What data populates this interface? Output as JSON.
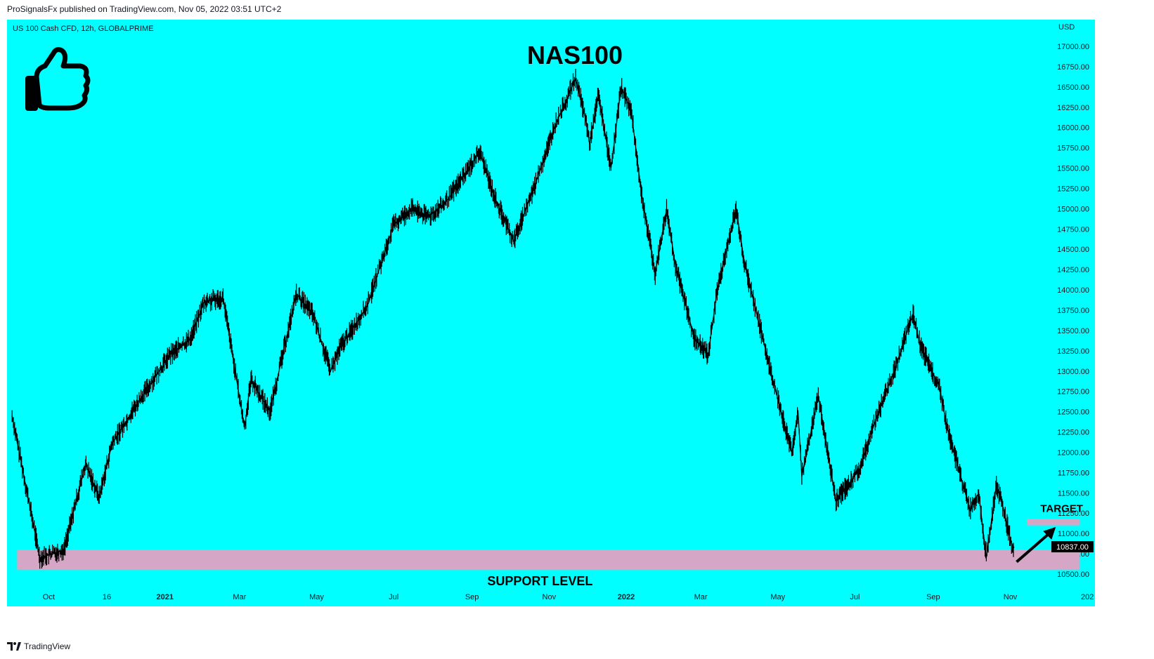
{
  "header": {
    "text": "ProSignalsFx published on TradingView.com, Nov 05, 2022 03:51 UTC+2"
  },
  "footer": {
    "text": "TradingView",
    "logo_icon": "tradingview-logo-icon"
  },
  "colors": {
    "background": "#00ffff",
    "candles": "#000000",
    "zone": "#d6a6c6",
    "price_tag": "#000000"
  },
  "chart_data": {
    "type": "line",
    "symbol": "US 100 Cash CFD, 12h, GLOBALPRIME",
    "title": "NAS100",
    "currency": "USD",
    "last_price": "10837.00",
    "ylim": [
      10400,
      17150
    ],
    "y_ticks": [
      "17000.00",
      "16750.00",
      "16500.00",
      "16250.00",
      "16000.00",
      "15750.00",
      "15500.00",
      "15250.00",
      "15000.00",
      "14750.00",
      "14500.00",
      "14250.00",
      "14000.00",
      "13750.00",
      "13500.00",
      "13250.00",
      "13000.00",
      "12750.00",
      "12500.00",
      "12250.00",
      "12000.00",
      "11750.00",
      "11500.00",
      "11250.00",
      "11000.00",
      "10750.00",
      "10500.00"
    ],
    "x_ticks": [
      {
        "label": "Oct",
        "date": "2020-10-01",
        "bold": false
      },
      {
        "label": "16",
        "date": "2020-11-16",
        "bold": false
      },
      {
        "label": "2021",
        "date": "2021-01-01",
        "bold": true
      },
      {
        "label": "Mar",
        "date": "2021-03-01",
        "bold": false
      },
      {
        "label": "May",
        "date": "2021-05-01",
        "bold": false
      },
      {
        "label": "Jul",
        "date": "2021-07-01",
        "bold": false
      },
      {
        "label": "Sep",
        "date": "2021-09-01",
        "bold": false
      },
      {
        "label": "Nov",
        "date": "2021-11-01",
        "bold": false
      },
      {
        "label": "2022",
        "date": "2022-01-01",
        "bold": true
      },
      {
        "label": "Mar",
        "date": "2022-03-01",
        "bold": false
      },
      {
        "label": "May",
        "date": "2022-05-01",
        "bold": false
      },
      {
        "label": "Jul",
        "date": "2022-07-01",
        "bold": false
      },
      {
        "label": "Sep",
        "date": "2022-09-01",
        "bold": false
      },
      {
        "label": "Nov",
        "date": "2022-11-01",
        "bold": false
      },
      {
        "label": "202",
        "date": "2023-01-01",
        "bold": false
      }
    ],
    "xlim": [
      "2020-08-29",
      "2023-01-07"
    ],
    "series": [
      {
        "x": [
          "2020-09-02",
          "2020-09-24",
          "2020-10-13",
          "2020-10-30",
          "2020-11-10",
          "2020-11-20",
          "2020-12-10",
          "2021-01-05",
          "2021-01-21",
          "2021-02-01",
          "2021-02-16",
          "2021-03-05",
          "2021-03-10",
          "2021-03-25",
          "2021-04-15",
          "2021-04-28",
          "2021-05-12",
          "2021-05-20",
          "2021-06-10",
          "2021-07-01",
          "2021-07-15",
          "2021-07-28",
          "2021-08-10",
          "2021-09-07",
          "2021-09-20",
          "2021-10-04",
          "2021-10-21",
          "2021-11-05",
          "2021-11-22",
          "2021-11-30",
          "2021-12-03",
          "2021-12-10",
          "2021-12-20",
          "2021-12-28",
          "2022-01-05",
          "2022-01-13",
          "2022-01-24",
          "2022-02-02",
          "2022-02-09",
          "2022-02-24",
          "2022-03-07",
          "2022-03-14",
          "2022-03-29",
          "2022-04-05",
          "2022-04-27",
          "2022-05-12",
          "2022-05-17",
          "2022-05-20",
          "2022-06-02",
          "2022-06-16",
          "2022-07-05",
          "2022-07-15",
          "2022-08-01",
          "2022-08-16",
          "2022-08-22",
          "2022-09-06",
          "2022-09-12",
          "2022-09-30",
          "2022-10-07",
          "2022-10-13",
          "2022-10-21",
          "2022-10-25",
          "2022-11-03",
          "2022-11-04"
        ],
        "values": [
          12450,
          10700,
          10800,
          11850,
          11450,
          12100,
          12600,
          13200,
          13400,
          13850,
          13900,
          12300,
          12900,
          12500,
          13950,
          13700,
          13000,
          13300,
          13800,
          14800,
          15000,
          14900,
          15050,
          15700,
          15100,
          14600,
          15300,
          16000,
          16600,
          16100,
          15800,
          16400,
          15500,
          16500,
          16200,
          15200,
          14200,
          15000,
          14300,
          13400,
          13200,
          14000,
          15000,
          14300,
          12900,
          12000,
          12500,
          11700,
          12700,
          11400,
          11800,
          12300,
          13000,
          13700,
          13300,
          12800,
          12300,
          11300,
          11500,
          10700,
          11600,
          11400,
          10800,
          10837
        ]
      }
    ],
    "annotations": [
      {
        "type": "zone",
        "label": "SUPPORT LEVEL",
        "y_range": [
          10550,
          10800
        ],
        "x_range": [
          "2020-09-06",
          "2022-12-26"
        ]
      },
      {
        "type": "zone",
        "label": "TARGET",
        "y_range": [
          11100,
          11180
        ],
        "x_range": [
          "2022-11-14",
          "2022-12-26"
        ]
      },
      {
        "type": "arrow",
        "from": {
          "date": "2022-11-06",
          "value": 10650
        },
        "to": {
          "date": "2022-12-07",
          "value": 11080
        }
      }
    ],
    "icon": "thumbs-up-icon",
    "grid": false
  }
}
